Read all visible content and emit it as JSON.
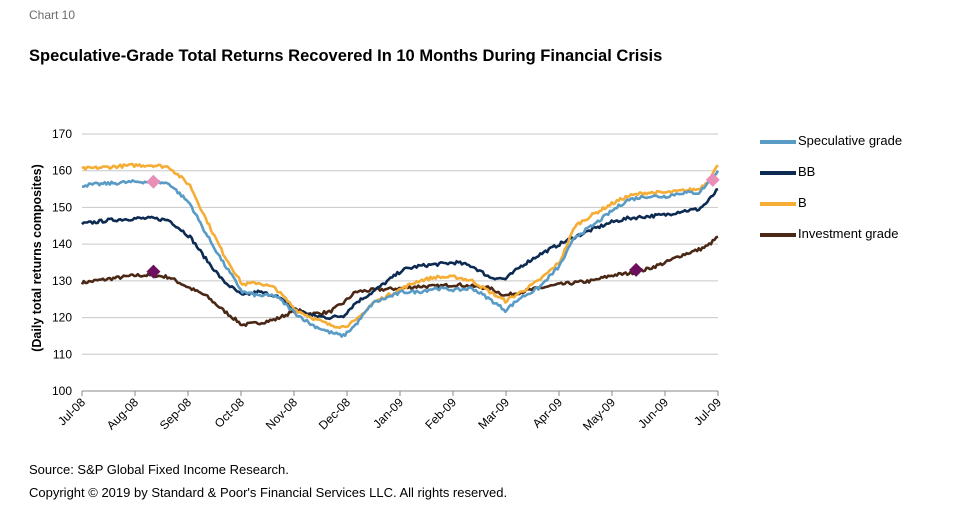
{
  "chart_label": "Chart 10",
  "source": "Source: S&P Global Fixed Income Research.",
  "copyright": "Copyright © 2019 by Standard & Poor's Financial Services LLC. All rights reserved.",
  "chart_data": {
    "type": "line",
    "title": "Speculative-Grade Total Returns Recovered In 10 Months During Financial Crisis",
    "ylabel": "(Daily total returns composites)",
    "xlabel": "",
    "ylim": [
      100,
      170
    ],
    "yticks": [
      100,
      110,
      120,
      130,
      140,
      150,
      160,
      170
    ],
    "x_tick_labels": [
      "Jul-08",
      "Aug-08",
      "Sep-08",
      "Oct-08",
      "Nov-08",
      "Dec-08",
      "Jan-09",
      "Feb-09",
      "Mar-09",
      "Apr-09",
      "May-09",
      "Jun-09",
      "Jul-09"
    ],
    "grid": "horizontal",
    "legend_position": "right",
    "x": [
      "2008-07-01",
      "2008-07-16",
      "2008-08-01",
      "2008-08-11",
      "2008-08-20",
      "2008-09-01",
      "2008-09-10",
      "2008-09-20",
      "2008-10-01",
      "2008-10-10",
      "2008-10-20",
      "2008-11-01",
      "2008-11-10",
      "2008-11-20",
      "2008-11-28",
      "2008-12-05",
      "2008-12-15",
      "2009-01-01",
      "2009-01-10",
      "2009-01-20",
      "2009-02-01",
      "2009-02-10",
      "2009-02-20",
      "2009-03-01",
      "2009-03-10",
      "2009-03-20",
      "2009-04-01",
      "2009-04-10",
      "2009-04-20",
      "2009-05-01",
      "2009-05-10",
      "2009-05-20",
      "2009-06-01",
      "2009-06-10",
      "2009-06-20",
      "2009-06-25",
      "2009-07-01"
    ],
    "series": [
      {
        "name": "Speculative grade",
        "color": "#5a9bc6",
        "values": [
          156,
          156.5,
          157,
          157,
          156.5,
          151,
          143,
          135,
          127,
          126,
          126,
          121,
          118,
          116,
          115,
          118,
          124,
          127,
          127,
          128,
          127.5,
          128,
          125,
          122,
          125.5,
          128,
          134,
          142,
          145,
          149,
          152,
          153,
          153,
          154,
          154,
          156.5,
          160
        ]
      },
      {
        "name": "BB",
        "color": "#0c2a52",
        "values": [
          145.5,
          146.5,
          147,
          147,
          146.5,
          142,
          136,
          130,
          126,
          127,
          126,
          122,
          120.5,
          120,
          120.5,
          124,
          127,
          133,
          134,
          134.5,
          135,
          134,
          131,
          130.5,
          134,
          137,
          140,
          142,
          144,
          146,
          147,
          147.5,
          148,
          149,
          149.5,
          151.5,
          155
        ]
      },
      {
        "name": "B",
        "color": "#f6ad35",
        "values": [
          160.5,
          161,
          161.5,
          161.5,
          161,
          156,
          147,
          137.5,
          129,
          129.5,
          128,
          122,
          120,
          118,
          117.5,
          119,
          124,
          128,
          130,
          131,
          131,
          130,
          127,
          124.5,
          127,
          130,
          135,
          145,
          148,
          151,
          153,
          154,
          154,
          154.5,
          155,
          157,
          161.5
        ]
      },
      {
        "name": "Investment grade",
        "color": "#4a2815",
        "values": [
          129.5,
          130.5,
          131.5,
          131.5,
          131,
          128,
          126,
          122,
          118,
          118.5,
          119.5,
          122,
          121,
          121.5,
          124,
          127,
          127.5,
          128,
          128.5,
          128.5,
          129,
          128.5,
          128,
          126,
          127,
          128,
          129,
          129.5,
          130,
          131.5,
          132,
          133,
          135,
          137,
          138.5,
          139.5,
          142
        ]
      }
    ],
    "markers": [
      {
        "x": "2008-08-11",
        "y": 157,
        "color": "#e98fb7"
      },
      {
        "x": "2009-06-28",
        "y": 157.5,
        "color": "#e98fb7"
      },
      {
        "x": "2008-08-11",
        "y": 132.5,
        "color": "#6d0f5e"
      },
      {
        "x": "2009-05-15",
        "y": 133,
        "color": "#6d0f5e"
      }
    ]
  }
}
